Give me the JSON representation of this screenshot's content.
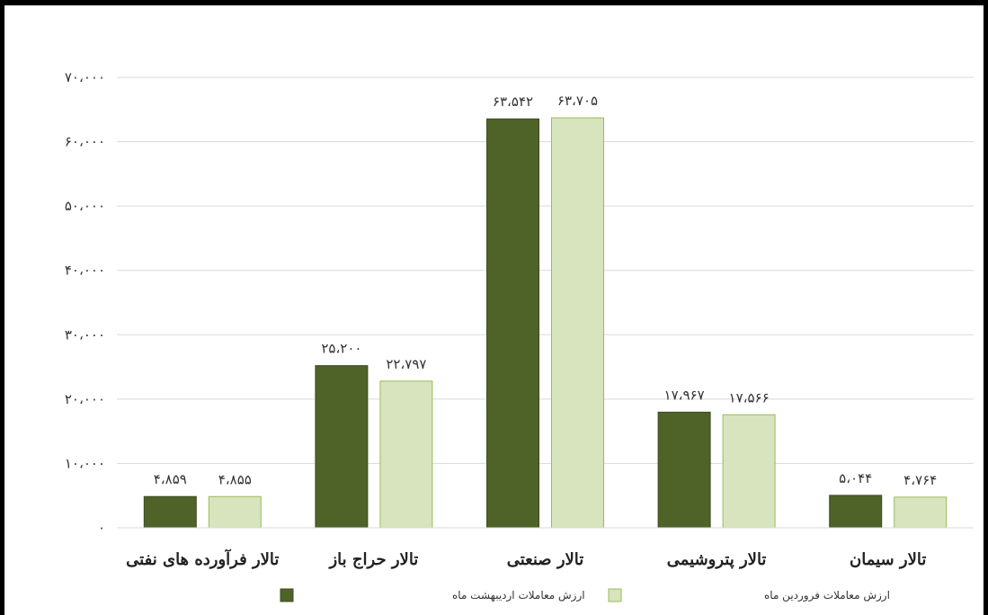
{
  "chart_data": {
    "type": "bar",
    "categories": [
      "تالار فرآورده های نفتی",
      "تالار حراج باز",
      "تالار صنعتی",
      "تالار پتروشیمی",
      "تالار سیمان"
    ],
    "series": [
      {
        "name": "ارزش معاملات اردیبهشت ماه",
        "color": "#4f6228",
        "values": [
          4859,
          25200,
          63542,
          17967,
          5044
        ],
        "labels": [
          "۴،۸۵۹",
          "۲۵،۲۰۰",
          "۶۳،۵۴۲",
          "۱۷،۹۶۷",
          "۵،۰۴۴"
        ]
      },
      {
        "name": "ارزش معاملات فروردین ماه",
        "color": "#d7e4bd",
        "values": [
          4855,
          22797,
          63705,
          17566,
          4764
        ],
        "labels": [
          "۴،۸۵۵",
          "۲۲،۷۹۷",
          "۶۳،۷۰۵",
          "۱۷،۵۶۶",
          "۴،۷۶۴"
        ]
      }
    ],
    "ylim": [
      0,
      70000
    ],
    "yticks": [
      0,
      10000,
      20000,
      30000,
      40000,
      50000,
      60000,
      70000
    ],
    "ytick_labels": [
      "۰",
      "۱۰،۰۰۰",
      "۲۰،۰۰۰",
      "۳۰،۰۰۰",
      "۴۰،۰۰۰",
      "۵۰،۰۰۰",
      "۶۰،۰۰۰",
      "۷۰،۰۰۰"
    ],
    "grid": true,
    "legend": "bottom",
    "title": "",
    "xlabel": "",
    "ylabel": ""
  }
}
